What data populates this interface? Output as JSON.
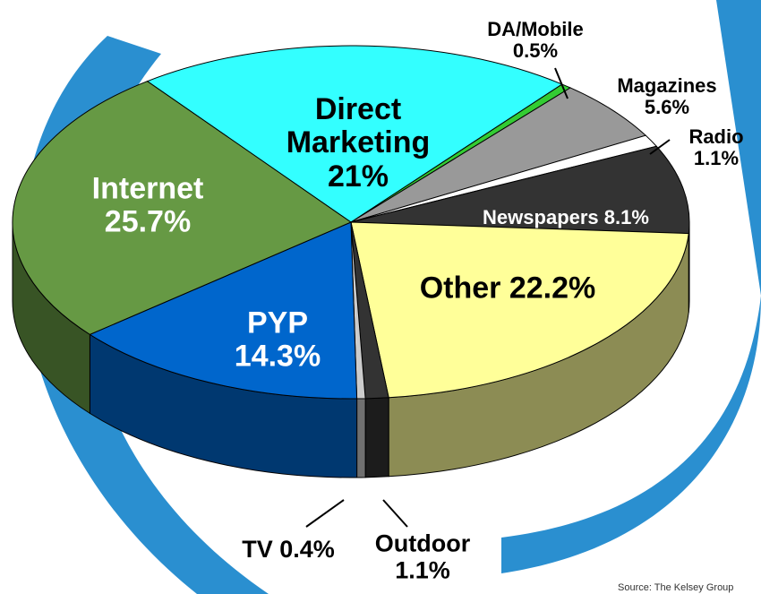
{
  "chart_data": {
    "type": "pie",
    "categories": [
      "Direct Marketing",
      "DA/Mobile",
      "Magazines",
      "Radio",
      "Newspapers",
      "Other",
      "Outdoor",
      "TV",
      "PYP",
      "Internet"
    ],
    "values": [
      21,
      0.5,
      5.6,
      1.1,
      8.1,
      22.2,
      1.1,
      0.4,
      14.3,
      25.7
    ],
    "value_labels": [
      "21%",
      "0.5%",
      "5.6%",
      "1.1%",
      "8.1%",
      "22.2%",
      "1.1%",
      "0.4%",
      "14.3%",
      "25.7%"
    ],
    "colors": [
      "#33ffff",
      "#33cc33",
      "#999999",
      "#ffffff",
      "#333333",
      "#ffff99",
      "#333333",
      "#cccccc",
      "#0066cc",
      "#669944"
    ],
    "source": "Source: The Kelsey Group"
  }
}
